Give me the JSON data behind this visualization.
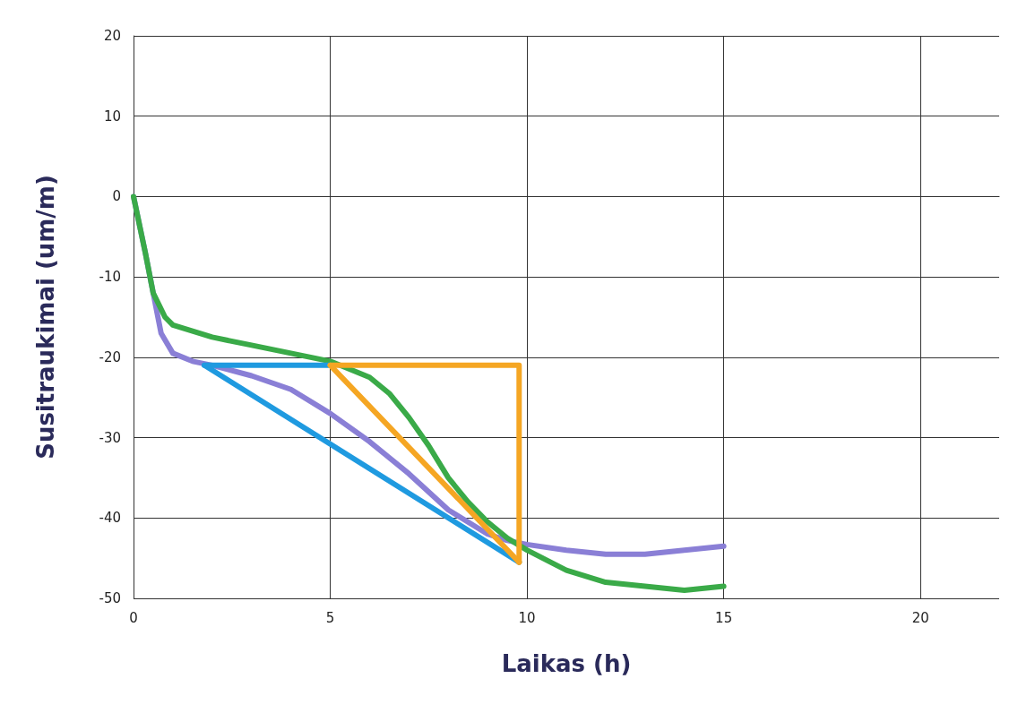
{
  "chart_data": {
    "type": "line",
    "xlabel": "Laikas (h)",
    "ylabel": "Susitraukimai (um/m)",
    "xlim": [
      0,
      22
    ],
    "xticks": [
      0,
      5,
      10,
      15,
      20
    ],
    "ylim": [
      -50,
      20
    ],
    "yticks": [
      -50,
      -40,
      -30,
      -20,
      -10,
      0,
      10,
      20
    ],
    "grid": true,
    "marker": "none",
    "line_style": "solid",
    "series": [
      {
        "color": "#8a7fd6",
        "x": [
          0,
          0.3,
          0.5,
          0.7,
          1,
          1.5,
          2,
          3,
          4,
          5,
          6,
          7,
          8,
          9,
          9.5,
          10,
          11,
          12,
          13,
          14,
          15
        ],
        "values": [
          0,
          -7,
          -12,
          -17,
          -19.5,
          -20.5,
          -21,
          -22.3,
          -24,
          -27,
          -30.5,
          -34.5,
          -39,
          -42,
          -42.8,
          -43.3,
          -44,
          -44.5,
          -44.5,
          -44,
          -43.5
        ]
      },
      {
        "color": "#3aaa48",
        "x": [
          0,
          0.3,
          0.5,
          0.8,
          1,
          2,
          3,
          4,
          5,
          6,
          6.5,
          7,
          7.5,
          8,
          8.5,
          9,
          9.5,
          10,
          11,
          12,
          13,
          14,
          15
        ],
        "values": [
          0,
          -7,
          -12,
          -15,
          -16,
          -17.5,
          -18.5,
          -19.5,
          -20.5,
          -22.5,
          -24.5,
          -27.5,
          -31,
          -35,
          -38,
          -40.5,
          -42.5,
          -44,
          -46.5,
          -48,
          -48.5,
          -49,
          -48.5
        ]
      },
      {
        "color": "#1f9ae0",
        "x": [
          1.8,
          5
        ],
        "values": [
          -21,
          -21
        ]
      },
      {
        "color": "#1f9ae0",
        "x": [
          1.8,
          9.8
        ],
        "values": [
          -21,
          -45.5
        ]
      },
      {
        "color": "#f5a623",
        "x": [
          5,
          9.8,
          9.8
        ],
        "values": [
          -21,
          -21,
          -45.5
        ]
      },
      {
        "color": "#f5a623",
        "x": [
          5,
          9.8
        ],
        "values": [
          -21,
          -45.5
        ]
      }
    ]
  }
}
